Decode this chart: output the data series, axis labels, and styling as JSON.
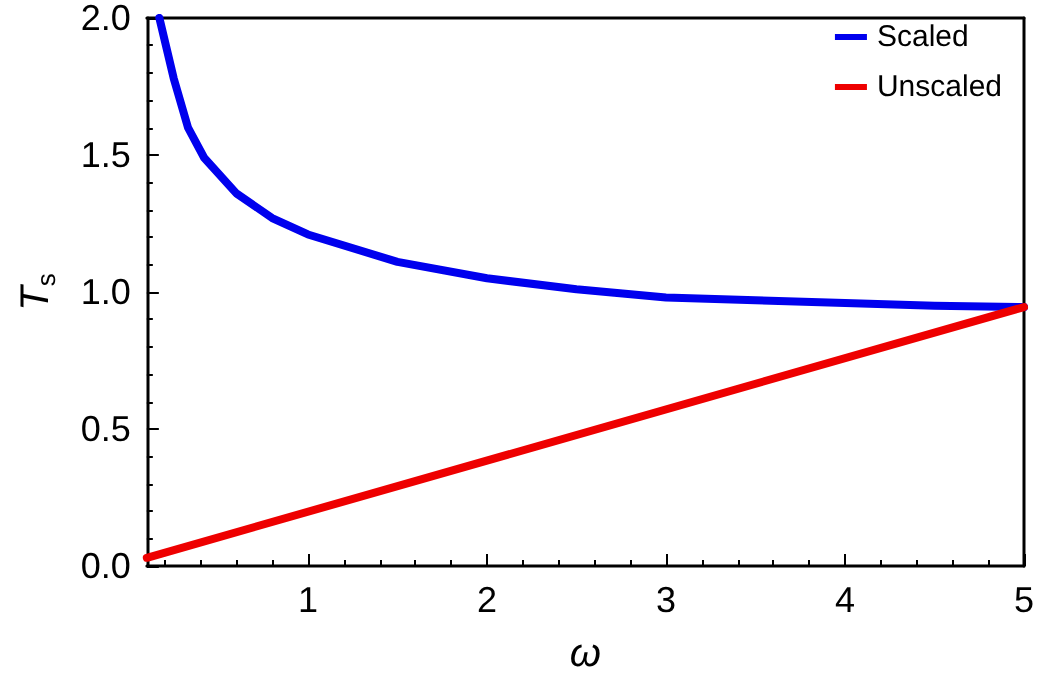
{
  "chart_data": {
    "type": "line",
    "xlabel": "ω",
    "ylabel": "T$_{s}$",
    "xlim": [
      0.1,
      5
    ],
    "xticks": [
      1,
      2,
      3,
      4,
      5
    ],
    "ylim": [
      0,
      2
    ],
    "yticks": [
      {
        "value": 0,
        "label": "0.0"
      },
      {
        "value": 0.5,
        "label": "0.5"
      },
      {
        "value": 1,
        "label": "1.0"
      },
      {
        "value": 1.5,
        "label": "1.5"
      },
      {
        "value": 2,
        "label": "2.0"
      }
    ],
    "grid": false,
    "legend": "top right",
    "marker": "none",
    "line_style": "solid",
    "series": [
      {
        "name": "Scaled",
        "color": "#0000ee",
        "x": [
          0.17,
          0.25,
          0.33,
          0.42,
          0.6,
          0.8,
          1,
          1.5,
          2,
          2.5,
          3,
          3.5,
          4,
          4.5,
          5
        ],
        "values": [
          2.0,
          1.78,
          1.6,
          1.49,
          1.36,
          1.27,
          1.21,
          1.11,
          1.05,
          1.01,
          0.98,
          0.97,
          0.96,
          0.95,
          0.945
        ]
      },
      {
        "name": "Unscaled",
        "color": "#ee0000",
        "x": [
          0.1,
          5
        ],
        "values": [
          0.03,
          0.945
        ]
      }
    ]
  }
}
